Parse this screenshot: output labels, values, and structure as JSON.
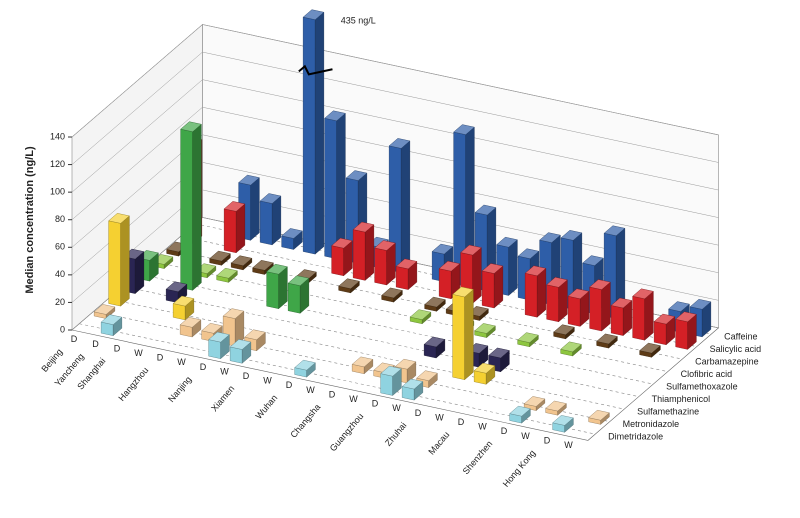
{
  "chart_data": {
    "type": "bar3d",
    "y_label": "Median concentration (ng/L)",
    "annotation": "435 ng/L",
    "ylim": [
      0,
      140
    ],
    "yticks": [
      0,
      20,
      40,
      60,
      80,
      100,
      120,
      140
    ],
    "grid": true,
    "groups": [
      {
        "name": "Beijing",
        "columns": [
          "D"
        ]
      },
      {
        "name": "Yancheng",
        "columns": [
          "D"
        ]
      },
      {
        "name": "Shanghai",
        "columns": [
          "D",
          "W"
        ]
      },
      {
        "name": "Hangzhou",
        "columns": [
          "D",
          "W"
        ]
      },
      {
        "name": "Nanjing",
        "columns": [
          "D",
          "W"
        ]
      },
      {
        "name": "Xiamen",
        "columns": [
          "D",
          "W"
        ]
      },
      {
        "name": "Wuhan",
        "columns": [
          "D",
          "W"
        ]
      },
      {
        "name": "Changsha",
        "columns": [
          "D",
          "W"
        ]
      },
      {
        "name": "Guangzhou",
        "columns": [
          "D",
          "W"
        ]
      },
      {
        "name": "Zhuhai",
        "columns": [
          "D",
          "W"
        ]
      },
      {
        "name": "Macau",
        "columns": [
          "D",
          "W"
        ]
      },
      {
        "name": "Shenzhen",
        "columns": [
          "D",
          "W"
        ]
      },
      {
        "name": "Hong Kong",
        "columns": [
          "D",
          "W"
        ]
      }
    ],
    "series": [
      {
        "name": "Dimetridazole",
        "color": "#8fd3e0",
        "values": [
          null,
          8,
          null,
          null,
          null,
          null,
          12,
          10,
          null,
          null,
          5,
          null,
          null,
          null,
          14,
          8,
          null,
          null,
          null,
          null,
          5,
          null,
          5,
          null
        ]
      },
      {
        "name": "Metronidazole",
        "color": "#f1c48e",
        "values": [
          3,
          null,
          null,
          null,
          7,
          6,
          20,
          8,
          null,
          null,
          null,
          null,
          5,
          4,
          10,
          5,
          null,
          null,
          null,
          null,
          3,
          3,
          null,
          3
        ]
      },
      {
        "name": "Sulfamethazine",
        "color": "#f5d031",
        "values": [
          60,
          null,
          null,
          10,
          null,
          null,
          null,
          null,
          null,
          null,
          null,
          null,
          null,
          null,
          null,
          null,
          60,
          8,
          null,
          null,
          null,
          null,
          null,
          null
        ]
      },
      {
        "name": "Thiamphenicol",
        "color": "#2a2553",
        "values": [
          25,
          null,
          8,
          null,
          null,
          null,
          null,
          null,
          null,
          null,
          null,
          null,
          null,
          null,
          8,
          null,
          10,
          10,
          null,
          null,
          null,
          null,
          null,
          null
        ]
      },
      {
        "name": "Sulfamethoxazole",
        "color": "#3fa648",
        "values": [
          15,
          null,
          115,
          null,
          null,
          null,
          25,
          20,
          null,
          null,
          null,
          null,
          null,
          null,
          null,
          null,
          null,
          null,
          null,
          null,
          null,
          null,
          null,
          null
        ]
      },
      {
        "name": "Clofibric acid",
        "color": "#8dc63f",
        "values": [
          3,
          null,
          3,
          3,
          null,
          null,
          null,
          null,
          null,
          null,
          null,
          null,
          3,
          null,
          3,
          3,
          null,
          3,
          null,
          3,
          null,
          null,
          null,
          null
        ]
      },
      {
        "name": "Carbamazepine",
        "color": "#5e3b16",
        "values": [
          3,
          null,
          3,
          3,
          3,
          null,
          3,
          null,
          3,
          null,
          3,
          null,
          3,
          3,
          3,
          null,
          null,
          null,
          3,
          null,
          3,
          null,
          3,
          null
        ]
      },
      {
        "name": "Salicylic acid",
        "color": "#d42026",
        "values": [
          70,
          null,
          30,
          null,
          null,
          null,
          null,
          20,
          35,
          25,
          15,
          null,
          20,
          35,
          25,
          null,
          30,
          25,
          20,
          30,
          20,
          30,
          15,
          20
        ]
      },
      {
        "name": "Caffeine",
        "color": "#2e5ea8",
        "values": [
          null,
          null,
          40,
          30,
          8,
          435,
          100,
          60,
          15,
          90,
          null,
          20,
          110,
          55,
          35,
          30,
          45,
          50,
          35,
          60,
          null,
          null,
          15,
          20
        ]
      }
    ]
  }
}
